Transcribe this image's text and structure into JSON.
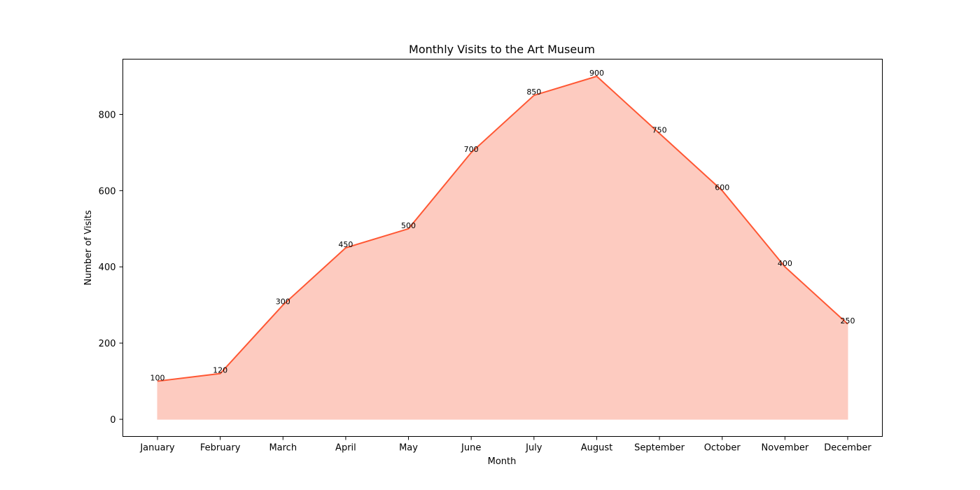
{
  "chart_data": {
    "type": "area",
    "title": "Monthly Visits to the Art Museum",
    "xlabel": "Month",
    "ylabel": "Number of Visits",
    "categories": [
      "January",
      "February",
      "March",
      "April",
      "May",
      "June",
      "July",
      "August",
      "September",
      "October",
      "November",
      "December"
    ],
    "values": [
      100,
      120,
      300,
      450,
      500,
      700,
      850,
      900,
      750,
      600,
      400,
      250
    ],
    "ylim": [
      -45,
      945
    ],
    "yticks": [
      0,
      200,
      400,
      600,
      800
    ],
    "grid": false,
    "line_color": "#ff5733",
    "fill_color": "#fdcbc0"
  }
}
